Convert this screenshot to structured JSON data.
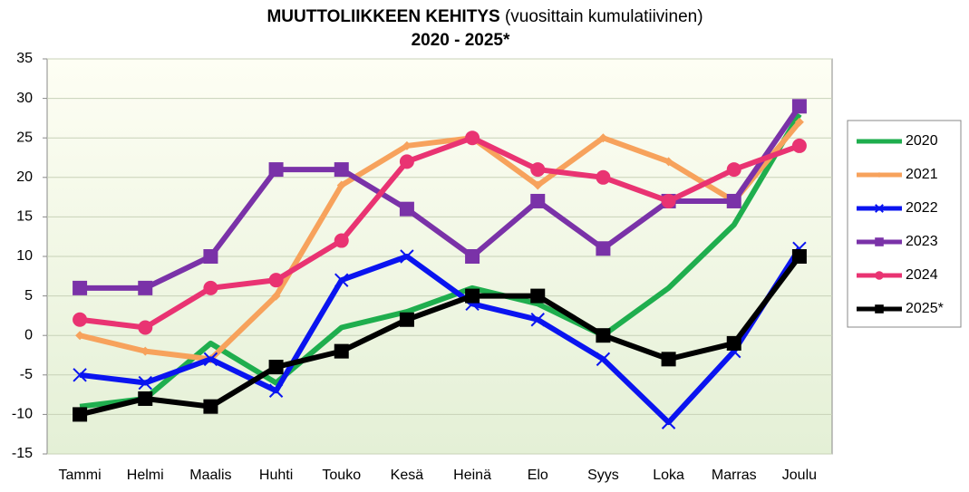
{
  "chart_data": {
    "type": "line",
    "title": "MUUTTOLIIKKEEN KEHITYS",
    "subtitle": "(vuosittain kumulatiivinen)",
    "title2": "2020 - 2025*",
    "categories": [
      "Tammi",
      "Helmi",
      "Maalis",
      "Huhti",
      "Touko",
      "Kesä",
      "Heinä",
      "Elo",
      "Syys",
      "Loka",
      "Marras",
      "Joulu"
    ],
    "series": [
      {
        "name": "2020",
        "color": "#1fae4e",
        "marker": "none",
        "values": [
          -9,
          -8,
          -1,
          -6,
          1,
          3,
          6,
          4,
          0,
          6,
          14,
          28
        ]
      },
      {
        "name": "2021",
        "color": "#f7a25c",
        "marker": "diamond",
        "values": [
          0,
          -2,
          -3,
          5,
          19,
          24,
          25,
          19,
          25,
          22,
          17,
          27
        ]
      },
      {
        "name": "2022",
        "color": "#0a14f0",
        "marker": "x",
        "values": [
          -5,
          -6,
          -3,
          -7,
          7,
          10,
          4,
          2,
          -3,
          -11,
          -2,
          11
        ]
      },
      {
        "name": "2023",
        "color": "#7a32a8",
        "marker": "square",
        "values": [
          6,
          6,
          10,
          21,
          21,
          16,
          10,
          17,
          11,
          17,
          17,
          29
        ]
      },
      {
        "name": "2024",
        "color": "#e93372",
        "marker": "circle",
        "values": [
          2,
          1,
          6,
          7,
          12,
          22,
          25,
          21,
          20,
          17,
          21,
          24
        ]
      },
      {
        "name": "2025*",
        "color": "#000000",
        "marker": "square",
        "values": [
          -10,
          -8,
          -9,
          -4,
          -2,
          2,
          5,
          5,
          0,
          -3,
          -1,
          10
        ]
      }
    ],
    "ylim": [
      -15,
      35
    ],
    "yticks": [
      -15,
      -10,
      -5,
      0,
      5,
      10,
      15,
      20,
      25,
      30,
      35
    ],
    "grid": true,
    "legend": "right"
  }
}
